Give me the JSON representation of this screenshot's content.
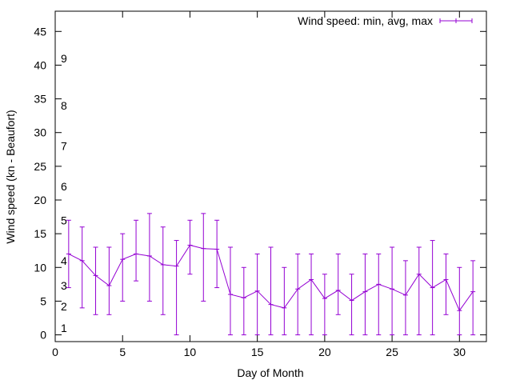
{
  "chart_data": {
    "type": "line",
    "title": "",
    "xlabel": "Day of Month",
    "ylabel": "Wind speed (kn - Beaufort)",
    "xlim": [
      0,
      32
    ],
    "ylim": [
      -1,
      48
    ],
    "x_ticks": [
      0,
      5,
      10,
      15,
      20,
      25,
      30
    ],
    "y_ticks": [
      0,
      5,
      10,
      15,
      20,
      25,
      30,
      35,
      40,
      45
    ],
    "grid": false,
    "legend_position": "top-right",
    "series": [
      {
        "name": "Wind speed: min, avg, max",
        "color": "#9400d3",
        "x": [
          1,
          2,
          3,
          4,
          5,
          6,
          7,
          8,
          9,
          10,
          11,
          12,
          13,
          14,
          15,
          16,
          17,
          18,
          19,
          20,
          21,
          22,
          23,
          24,
          25,
          26,
          27,
          28,
          29,
          30,
          31
        ],
        "avg": [
          12,
          11,
          8.8,
          7.3,
          11.2,
          12,
          11.7,
          10.4,
          10.2,
          13.3,
          12.8,
          12.7,
          6,
          5.5,
          6.5,
          4.5,
          4,
          6.8,
          8.2,
          5.4,
          6.6,
          5.1,
          6.4,
          7.5,
          6.8,
          5.9,
          9,
          7,
          8.2,
          3.6,
          6.4
        ],
        "min": [
          7,
          4,
          3,
          3,
          5,
          8,
          5,
          3,
          0,
          9,
          5,
          7,
          0,
          0,
          0,
          0,
          0,
          0,
          0,
          0,
          3,
          0,
          0,
          0,
          0,
          0,
          0,
          0,
          3,
          0,
          0
        ],
        "max": [
          17,
          16,
          13,
          13,
          15,
          17,
          18,
          16,
          14,
          17,
          18,
          17,
          13,
          10,
          12,
          13,
          10,
          12,
          12,
          9,
          12,
          9,
          12,
          12,
          13,
          11,
          13,
          14,
          12,
          10,
          11
        ]
      }
    ],
    "beaufort_labels": [
      {
        "label": "1",
        "y": 1
      },
      {
        "label": "2",
        "y": 4.2
      },
      {
        "label": "3",
        "y": 7.3
      },
      {
        "label": "4",
        "y": 11
      },
      {
        "label": "5",
        "y": 17
      },
      {
        "label": "6",
        "y": 22
      },
      {
        "label": "7",
        "y": 28
      },
      {
        "label": "8",
        "y": 34
      },
      {
        "label": "9",
        "y": 41
      }
    ]
  }
}
